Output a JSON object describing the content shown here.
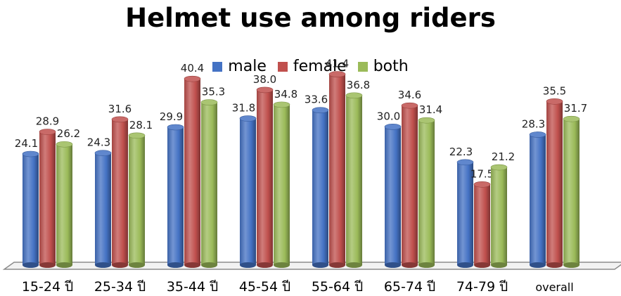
{
  "chart_data": {
    "type": "bar",
    "title": "Helmet use among riders",
    "categories": [
      "15-24 ปี",
      "25-34 ปี",
      "35-44 ปี",
      "45-54 ปี",
      "55-64 ปี",
      "65-74 ปี",
      "74-79 ปี",
      "overall"
    ],
    "series": [
      {
        "name": "male",
        "color": "#4472C4",
        "values": [
          24.1,
          24.3,
          29.9,
          31.8,
          33.6,
          30.0,
          22.3,
          28.3
        ]
      },
      {
        "name": "female",
        "color": "#C0504D",
        "values": [
          28.9,
          31.6,
          40.4,
          38.0,
          41.4,
          34.6,
          17.5,
          35.5
        ]
      },
      {
        "name": "both",
        "color": "#9BBB59",
        "values": [
          26.2,
          28.1,
          35.3,
          34.8,
          36.8,
          31.4,
          21.2,
          31.7
        ]
      }
    ],
    "ylim": [
      0,
      45
    ],
    "legend": "top-center",
    "grid": false,
    "style": "3d-cylinder"
  }
}
